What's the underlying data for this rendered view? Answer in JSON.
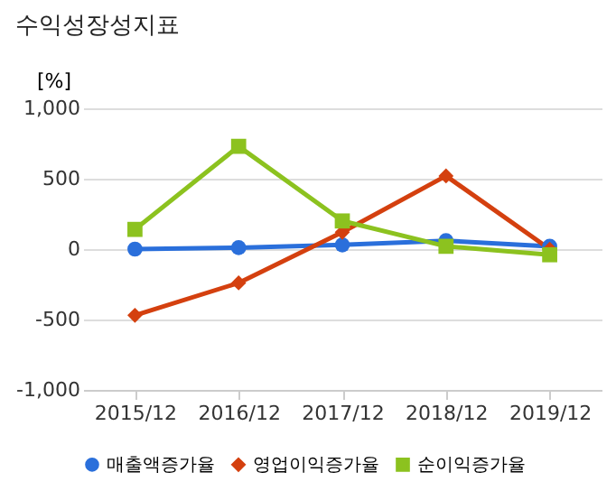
{
  "chart_data": {
    "type": "line",
    "title": "수익성장성지표",
    "ylabel": "[%]",
    "categories": [
      "2015/12",
      "2016/12",
      "2017/12",
      "2018/12",
      "2019/12"
    ],
    "series": [
      {
        "name": "매출액증가율",
        "color": "#2a6fdb",
        "marker": "circle",
        "values": [
          0,
          10,
          30,
          60,
          20
        ]
      },
      {
        "name": "영업이익증가율",
        "color": "#d4400f",
        "marker": "diamond",
        "values": [
          -470,
          -240,
          120,
          520,
          0
        ]
      },
      {
        "name": "순이익증가율",
        "color": "#8cc21f",
        "marker": "square",
        "values": [
          140,
          730,
          200,
          20,
          -40
        ]
      }
    ],
    "ylim": [
      -1000,
      1000
    ],
    "yticks": [
      {
        "value": -1000,
        "label": "-1,000"
      },
      -500,
      0,
      500,
      {
        "value": 1000,
        "label": "1,000"
      }
    ],
    "grid": "y",
    "legend": "bottom"
  }
}
